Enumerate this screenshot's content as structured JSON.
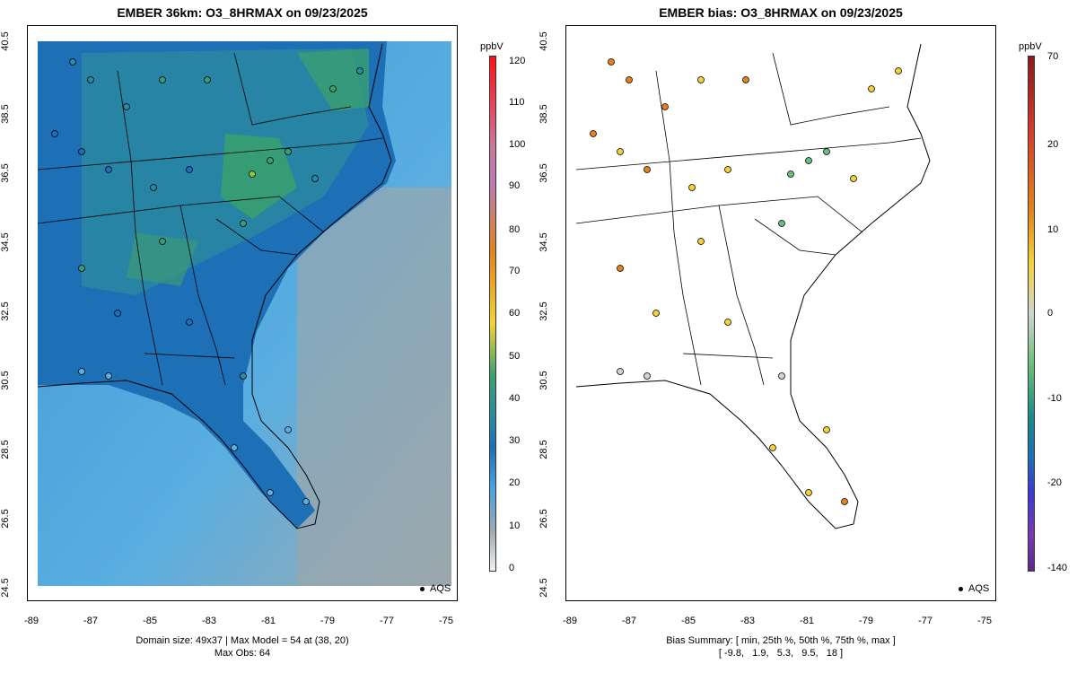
{
  "left": {
    "title": "EMBER 36km: O3_8HRMAX on 09/23/2025",
    "footer1": "Domain size: 49x37 | Max Model = 54 at (38, 20)",
    "footer2": "Max Obs: 64",
    "colorbar": {
      "unit": "ppbV",
      "ticks": [
        "120",
        "110",
        "100",
        "90",
        "80",
        "70",
        "60",
        "50",
        "40",
        "30",
        "20",
        "10",
        "0"
      ]
    },
    "legend": "AQS"
  },
  "right": {
    "title": "EMBER bias: O3_8HRMAX on 09/23/2025",
    "footer1": "Bias Summary: [ min, 25th %, 50th %, 75th %, max ]",
    "footer2": "[ -9.8,   1.9,   5.3,   9.5,   18 ]",
    "colorbar": {
      "unit": "ppbV",
      "ticks": [
        "70",
        "20",
        "10",
        "0",
        "-10",
        "-20",
        "-140"
      ]
    },
    "legend": "AQS"
  },
  "axes": {
    "y_ticks": [
      "40.5",
      "38.5",
      "36.5",
      "34.5",
      "32.5",
      "30.5",
      "28.5",
      "26.5",
      "24.5"
    ],
    "x_ticks": [
      "-89",
      "-87",
      "-85",
      "-83",
      "-81",
      "-79",
      "-77",
      "-75"
    ]
  },
  "colors": {
    "land_high": "#2f9a7c",
    "land_mid": "#1f6fb8",
    "ocean_near": "#4aa3e0",
    "ocean_far": "#9aa8b0",
    "bias_warm": "#e0841c",
    "bias_yellow": "#f2d23a",
    "bias_neutral": "#cfd6cf",
    "bias_cool": "#6cbf78"
  }
}
